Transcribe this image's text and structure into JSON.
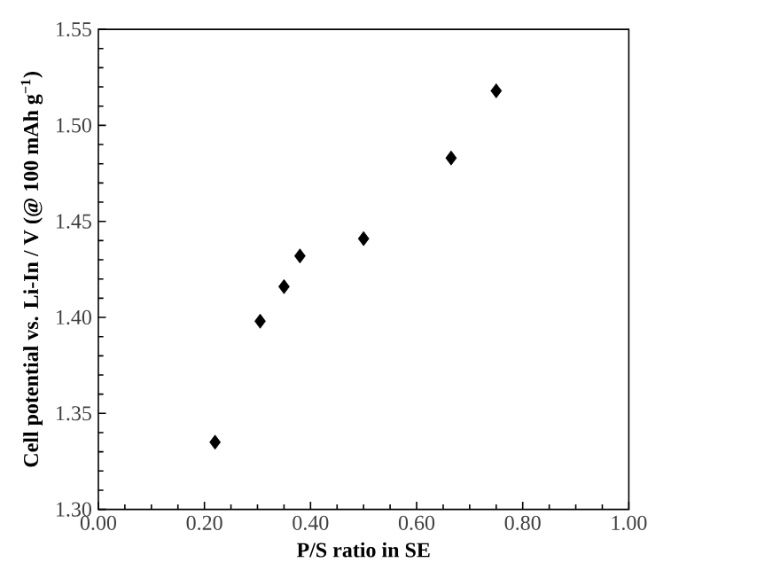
{
  "chart_data": {
    "type": "scatter",
    "xlabel": "P/S ratio in SE",
    "ylabel": "Cell potential vs. Li-In / V (@ 100 mAh g$^{−1}$)",
    "x": [
      0.22,
      0.305,
      0.35,
      0.38,
      0.5,
      0.665,
      0.75
    ],
    "values": [
      1.335,
      1.398,
      1.416,
      1.432,
      1.441,
      1.483,
      1.518
    ],
    "color": "#000000",
    "marker": "diamond",
    "xlim": [
      0,
      1
    ],
    "ylim": [
      1.3,
      1.55
    ],
    "xticks": [
      {
        "value": 0,
        "label": "0.00"
      },
      {
        "value": 0.2,
        "label": "0.20"
      },
      {
        "value": 0.4,
        "label": "0.40"
      },
      {
        "value": 0.6,
        "label": "0.60"
      },
      {
        "value": 0.8,
        "label": "0.80"
      },
      {
        "value": 1,
        "label": "1.00"
      }
    ],
    "yticks": [
      {
        "value": 1.3,
        "label": "1.30"
      },
      {
        "value": 1.35,
        "label": "1.35"
      },
      {
        "value": 1.4,
        "label": "1.40"
      },
      {
        "value": 1.45,
        "label": "1.45"
      },
      {
        "value": 1.5,
        "label": "1.50"
      },
      {
        "value": 1.55,
        "label": "1.55"
      }
    ]
  }
}
